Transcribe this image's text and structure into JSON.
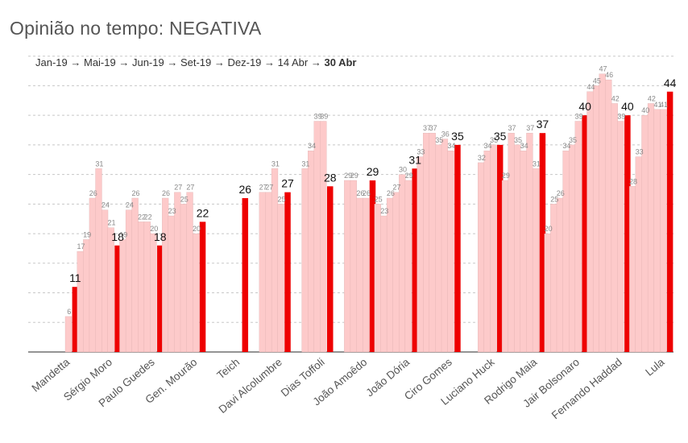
{
  "title": "Opinião no tempo: NEGATIVA",
  "chart_data": {
    "type": "bar",
    "title": "Opinião no tempo: NEGATIVA",
    "xlabel": "",
    "ylabel": "",
    "ylim": [
      0,
      52
    ],
    "grid": true,
    "time_legend": [
      "Jan-19",
      "Mai-19",
      "Jun-19",
      "Set-19",
      "Dez-19",
      "14 Abr",
      "30 Abr"
    ],
    "time_legend_arrow": "→",
    "colors": {
      "history": "#fdcaca",
      "current": "#ee0000",
      "grid": "#c8c8c8"
    },
    "categories": [
      {
        "name": "Mandetta",
        "values": [
          null,
          null,
          null,
          null,
          null,
          6,
          11
        ]
      },
      {
        "name": "Sérgio Moro",
        "values": [
          17,
          19,
          26,
          31,
          24,
          21,
          18
        ]
      },
      {
        "name": "Paulo Guedes",
        "values": [
          19,
          24,
          26,
          22,
          22,
          20,
          18
        ]
      },
      {
        "name": "Gen. Mourão",
        "values": [
          26,
          23,
          27,
          25,
          27,
          20,
          22
        ]
      },
      {
        "name": "Teich",
        "values": [
          null,
          null,
          null,
          null,
          null,
          null,
          26
        ]
      },
      {
        "name": "Davi Alcolumbre",
        "values": [
          null,
          null,
          27,
          27,
          31,
          25,
          27
        ]
      },
      {
        "name": "Dias Toffoli",
        "values": [
          null,
          null,
          31,
          34,
          39,
          39,
          28
        ]
      },
      {
        "name": "João Amoêdo",
        "values": [
          null,
          null,
          29,
          29,
          26,
          26,
          29
        ]
      },
      {
        "name": "João Dória",
        "values": [
          25,
          23,
          26,
          27,
          30,
          29,
          31
        ]
      },
      {
        "name": "Ciro Gomes",
        "values": [
          33,
          37,
          37,
          35,
          36,
          34,
          35
        ]
      },
      {
        "name": "Luciano Huck",
        "values": [
          null,
          null,
          null,
          32,
          34,
          35,
          35
        ]
      },
      {
        "name": "Rodrigo Maia",
        "values": [
          29,
          37,
          35,
          34,
          37,
          31,
          37
        ]
      },
      {
        "name": "Jair Bolsonaro",
        "values": [
          20,
          25,
          26,
          34,
          35,
          39,
          40
        ]
      },
      {
        "name": "Fernando Haddad",
        "values": [
          44,
          45,
          47,
          46,
          42,
          39,
          40
        ]
      },
      {
        "name": "Lula",
        "values": [
          28,
          33,
          40,
          42,
          41,
          41,
          44
        ]
      }
    ]
  }
}
